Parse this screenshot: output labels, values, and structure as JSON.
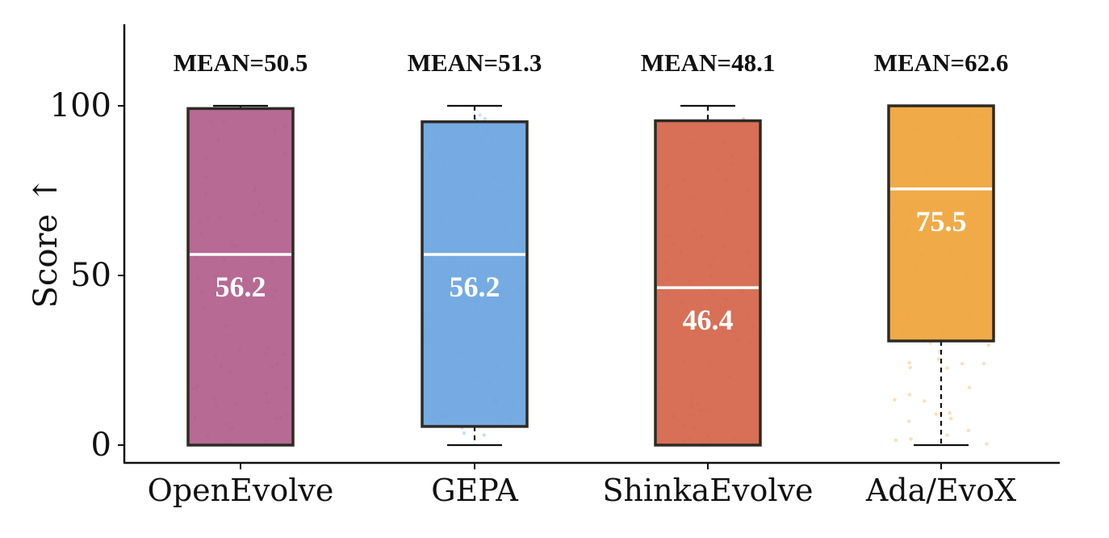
{
  "chart_data": {
    "type": "box",
    "ylabel": "Score ↑",
    "xlabel": "",
    "ylim": [
      -5,
      124
    ],
    "yticks": [
      0,
      50,
      100
    ],
    "categories": [
      "OpenEvolve",
      "GEPA",
      "ShinkaEvolve",
      "Ada/EvoX"
    ],
    "mean_prefix": "MEAN=",
    "boxes": [
      {
        "name": "OpenEvolve",
        "color": "#b05f8c",
        "whisker_low": 0,
        "q1": 0,
        "median": 56.2,
        "q3": 99.2,
        "whisker_high": 100,
        "mean": "50.5",
        "median_label": "56.2"
      },
      {
        "name": "GEPA",
        "color": "#6ba5e0",
        "whisker_low": 0,
        "q1": 5.5,
        "median": 56.2,
        "q3": 95.3,
        "whisker_high": 100,
        "mean": "51.3",
        "median_label": "56.2"
      },
      {
        "name": "ShinkaEvolve",
        "color": "#d4654a",
        "whisker_low": 0,
        "q1": 0,
        "median": 46.4,
        "q3": 95.6,
        "whisker_high": 100,
        "mean": "48.1",
        "median_label": "46.4"
      },
      {
        "name": "Ada/EvoX",
        "color": "#f0a43a",
        "whisker_low": 0,
        "q1": 30.7,
        "median": 75.5,
        "q3": 100,
        "whisker_high": 100,
        "mean": "62.6",
        "median_label": "75.5"
      }
    ]
  }
}
